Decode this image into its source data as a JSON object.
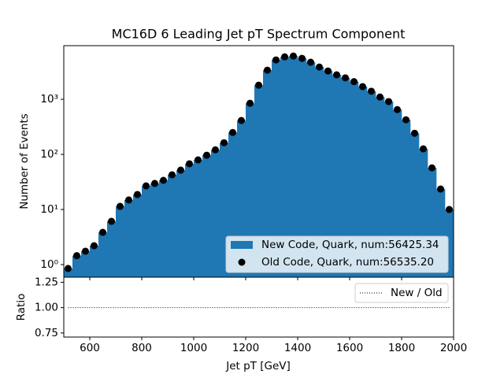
{
  "chart_data": [
    {
      "type": "histogram",
      "title": "MC16D 6 Leading Jet pT Spectrum Component",
      "ylabel": "Number of Events",
      "bins": [
        500,
        533.33,
        566.67,
        600,
        633.33,
        666.67,
        700,
        733.33,
        766.67,
        800,
        833.33,
        866.67,
        900,
        933.33,
        966.67,
        1000,
        1033.33,
        1066.67,
        1100,
        1133.33,
        1166.67,
        1200,
        1233.33,
        1266.67,
        1300,
        1333.33,
        1366.67,
        1400,
        1433.33,
        1466.67,
        1500,
        1533.33,
        1566.67,
        1600,
        1633.33,
        1666.67,
        1700,
        1733.33,
        1766.67,
        1800,
        1833.33,
        1866.67,
        1900,
        1933.33,
        1966.67,
        2000
      ],
      "series": [
        {
          "name": "New Code, Quark, num:56425.34",
          "color": "#1f77b4",
          "style": "bar",
          "values": [
            0.85,
            1.45,
            1.75,
            2.2,
            3.85,
            6.1,
            11.4,
            14.9,
            18.7,
            26.8,
            29.7,
            33.8,
            42.6,
            51.8,
            67.5,
            79.4,
            96.7,
            121,
            163,
            250,
            412,
            846,
            1804,
            3380,
            5180,
            5900,
            6100,
            5530,
            4700,
            3850,
            3270,
            2780,
            2450,
            2090,
            1700,
            1400,
            1100,
            910,
            650,
            425,
            242,
            126,
            57,
            23.5,
            10
          ]
        },
        {
          "name": "Old Code, Quark, num:56535.20",
          "color": "#000000",
          "style": "marker",
          "values": [
            0.85,
            1.45,
            1.75,
            2.2,
            3.85,
            6.1,
            11.4,
            14.9,
            18.7,
            26.8,
            29.7,
            33.8,
            42.6,
            51.8,
            67.5,
            79.4,
            96.7,
            121,
            163,
            250,
            412,
            846,
            1804,
            3380,
            5180,
            5900,
            6100,
            5530,
            4700,
            3850,
            3270,
            2780,
            2450,
            2090,
            1700,
            1400,
            1100,
            910,
            650,
            425,
            242,
            126,
            57,
            23.5,
            10
          ]
        }
      ],
      "xlim": [
        500,
        2000
      ],
      "ylim": [
        0.59,
        9400
      ],
      "log_y": true,
      "yticks": [
        {
          "value": 1,
          "label": "10⁰"
        },
        {
          "value": 10,
          "label": "10¹"
        },
        {
          "value": 100,
          "label": "10²"
        },
        {
          "value": 1000,
          "label": "10³"
        }
      ],
      "legend": "lower right"
    },
    {
      "type": "line",
      "xlabel": "Jet pT [GeV]",
      "ylabel": "Ratio",
      "x": [
        516.67,
        550,
        583.33,
        616.67,
        650,
        683.33,
        716.67,
        750,
        783.33,
        816.67,
        850,
        883.33,
        916.67,
        950,
        983.33,
        1016.67,
        1050,
        1083.33,
        1116.67,
        1150,
        1183.33,
        1216.67,
        1250,
        1283.33,
        1316.67,
        1350,
        1383.33,
        1416.67,
        1450,
        1483.33,
        1516.67,
        1550,
        1583.33,
        1616.67,
        1650,
        1683.33,
        1716.67,
        1750,
        1783.33,
        1816.67,
        1850,
        1883.33,
        1916.67,
        1950,
        1983.33
      ],
      "series": [
        {
          "name": "New / Old",
          "color": "#000000",
          "values": [
            1,
            1,
            1,
            1,
            1,
            1,
            1,
            1,
            1,
            1,
            1,
            1,
            1,
            1,
            1,
            1,
            1,
            1,
            1,
            1,
            1,
            1,
            1,
            1,
            1,
            1,
            1,
            1,
            1,
            1,
            1,
            1,
            1,
            1,
            1,
            1,
            1,
            1,
            1,
            1,
            1,
            1,
            1,
            1,
            1
          ]
        }
      ],
      "xlim": [
        500,
        2000
      ],
      "xticks": [
        600,
        800,
        1000,
        1200,
        1400,
        1600,
        1800,
        2000
      ],
      "ylim": [
        0.71,
        1.3
      ],
      "yticks": [
        0.75,
        {
          "value": 1,
          "label": "1.00"
        },
        1.25
      ],
      "legend": "upper right"
    }
  ]
}
